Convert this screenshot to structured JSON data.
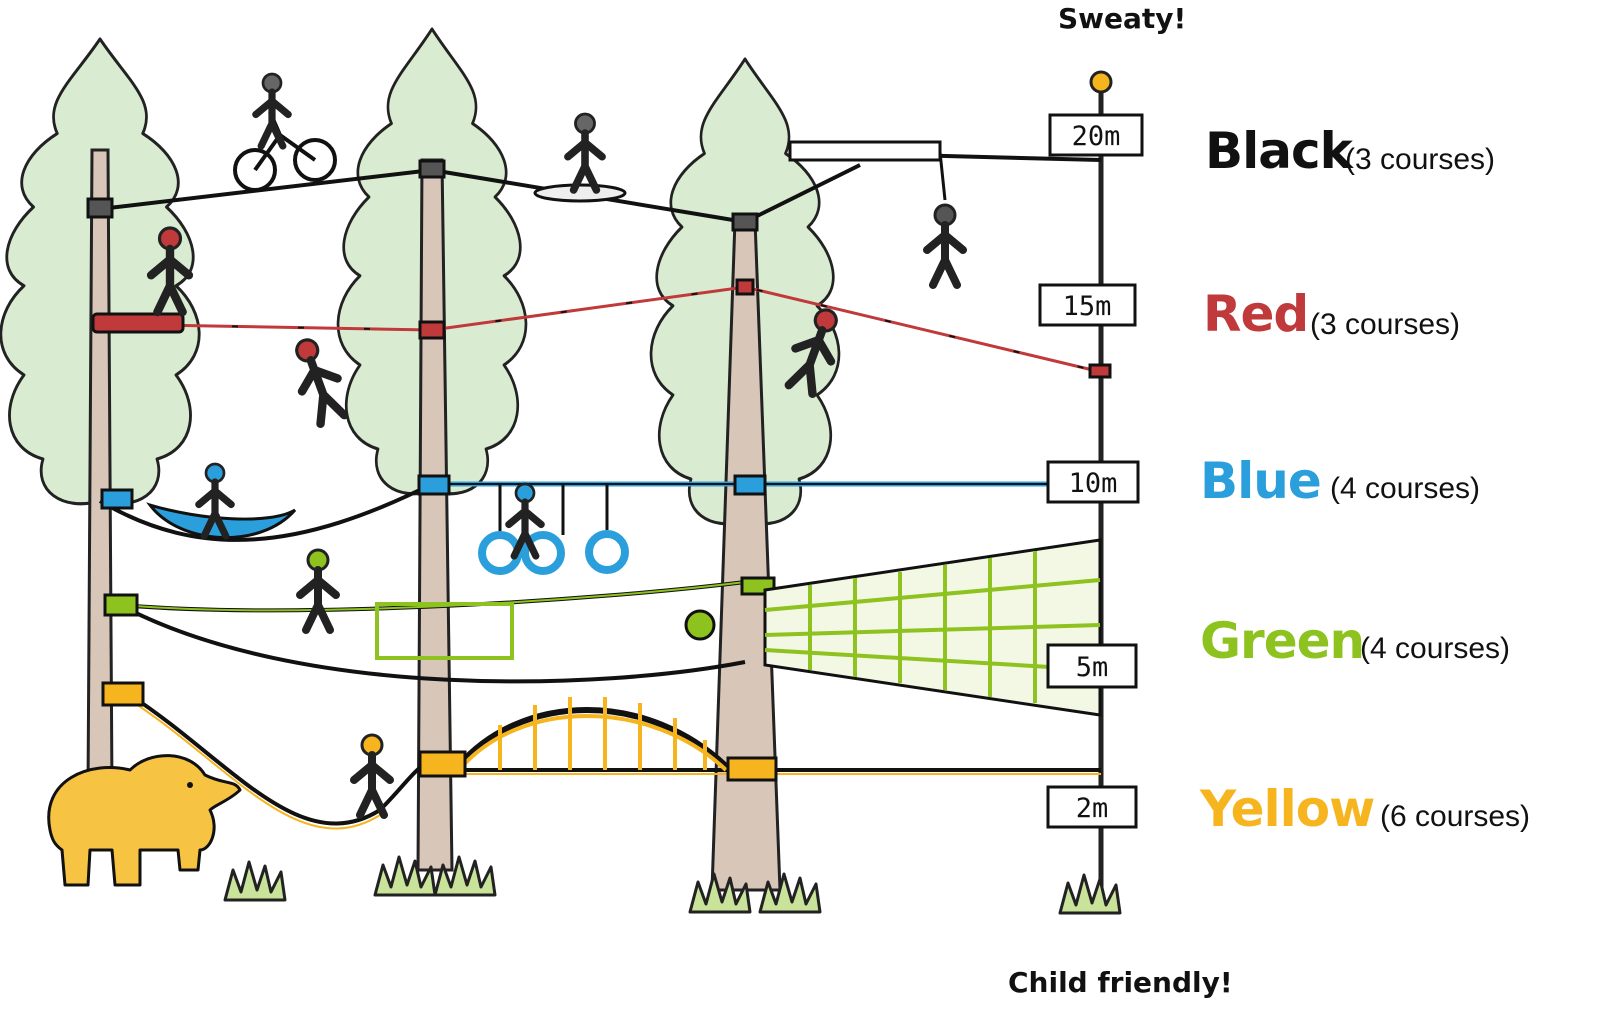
{
  "notes": {
    "top": "Sweaty!",
    "bottom": "Child friendly!"
  },
  "levels": [
    {
      "key": "black",
      "name": "Black",
      "count": "(3  courses)",
      "height": "20m",
      "color": "#111111"
    },
    {
      "key": "red",
      "name": "Red",
      "count": "(3  courses)",
      "height": "15m",
      "color": "#c0393b"
    },
    {
      "key": "blue",
      "name": "Blue",
      "count": "(4  courses)",
      "height": "10m",
      "color": "#2a9fdc"
    },
    {
      "key": "green",
      "name": "Green",
      "count": "(4 courses)",
      "height": "5m",
      "color": "#8dc21f"
    },
    {
      "key": "yellow",
      "name": "Yellow",
      "count": "(6 courses)",
      "height": "2m",
      "color": "#f6b51e"
    }
  ],
  "icons": [
    "tree-icon",
    "bicycle-rider-icon",
    "surfer-icon",
    "zipline-rider-icon",
    "climber-icon",
    "kayak-icon",
    "ring-swing-icon",
    "cargo-net-icon",
    "bridge-icon",
    "elephant-icon",
    "grass-icon",
    "height-pole-icon"
  ]
}
